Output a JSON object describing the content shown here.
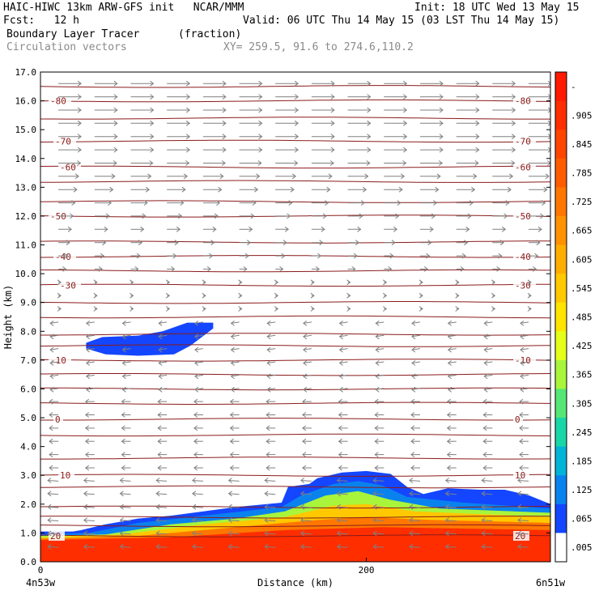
{
  "header": {
    "left_line1": "HAIC-HIWC 13km ARW-GFS init   NCAR/MMM",
    "init": "Init: 18 UTC Wed 13 May 15",
    "fcst": "Fcst:   12 h",
    "valid": "Valid: 06 UTC Thu 14 May 15 (03 LST Thu 14 May 15)",
    "field": "Boundary Layer Tracer",
    "field_units": "(fraction)",
    "vectors": "Circulation vectors",
    "xy": "XY= 259.5, 91.6 to 274.6,110.2"
  },
  "colors": {
    "contour": "#8b1a1a",
    "vector": "#808080",
    "tracer_high": "#ff1a00"
  },
  "chart_data": {
    "type": "heatmap",
    "xlabel": "Distance (km)",
    "ylabel": "Height (km)",
    "xlim": [
      0,
      313
    ],
    "ylim": [
      0,
      17
    ],
    "x_ticks": [
      0,
      200
    ],
    "x_tick_labels": [
      "0",
      "200"
    ],
    "x_end_labels": [
      "4n53w",
      "6n51w"
    ],
    "y_ticks": [
      0,
      1,
      2,
      3,
      4,
      5,
      6,
      7,
      8,
      9,
      10,
      11,
      12,
      13,
      14,
      15,
      16,
      17
    ],
    "y_tick_labels": [
      "0.0",
      "1.0",
      "2.0",
      "3.0",
      "4.0",
      "5.0",
      "6.0",
      "7.0",
      "8.0",
      "9.0",
      "10.0",
      "11.0",
      "12.0",
      "13.0",
      "14.0",
      "15.0",
      "16.0",
      "17.0"
    ],
    "colorbar": {
      "labels": [
        "-",
        ".905",
        ".845",
        ".785",
        ".725",
        ".665",
        ".605",
        ".545",
        ".485",
        ".425",
        ".365",
        ".305",
        ".245",
        ".185",
        ".125",
        ".065",
        ".005"
      ],
      "colors": [
        "#ff1a00",
        "#ff2e00",
        "#ff4500",
        "#ff5c00",
        "#ff7700",
        "#ff9200",
        "#ffae00",
        "#ffc800",
        "#ffe400",
        "#e4ff1a",
        "#a8f53c",
        "#55e676",
        "#19d6a6",
        "#00b4d8",
        "#0a82ee",
        "#1446ff",
        "#ffffff"
      ]
    },
    "tracer_regions": [
      {
        "value": 0.05,
        "top": [
          [
            0,
            1.05
          ],
          [
            20,
            1.05
          ],
          [
            25,
            1.1
          ],
          [
            40,
            1.3
          ],
          [
            60,
            1.5
          ],
          [
            80,
            1.6
          ],
          [
            100,
            1.75
          ],
          [
            120,
            1.9
          ],
          [
            148,
            2.05
          ],
          [
            152,
            2.6
          ],
          [
            165,
            2.7
          ],
          [
            170,
            2.9
          ],
          [
            185,
            3.1
          ],
          [
            200,
            3.15
          ],
          [
            215,
            3.05
          ],
          [
            225,
            2.6
          ],
          [
            235,
            2.35
          ],
          [
            250,
            2.55
          ],
          [
            270,
            2.5
          ],
          [
            285,
            2.5
          ],
          [
            300,
            2.3
          ],
          [
            313,
            2.0
          ]
        ]
      },
      {
        "value": 0.15,
        "top": [
          [
            0,
            0.95
          ],
          [
            30,
            1.0
          ],
          [
            60,
            1.35
          ],
          [
            100,
            1.6
          ],
          [
            148,
            1.9
          ],
          [
            160,
            2.3
          ],
          [
            180,
            2.7
          ],
          [
            195,
            2.8
          ],
          [
            210,
            2.65
          ],
          [
            225,
            2.25
          ],
          [
            260,
            2.05
          ],
          [
            313,
            1.85
          ]
        ]
      },
      {
        "value": 0.35,
        "top": [
          [
            0,
            0.9
          ],
          [
            40,
            0.95
          ],
          [
            80,
            1.3
          ],
          [
            120,
            1.5
          ],
          [
            150,
            1.75
          ],
          [
            175,
            2.3
          ],
          [
            195,
            2.45
          ],
          [
            215,
            2.15
          ],
          [
            245,
            1.85
          ],
          [
            313,
            1.7
          ]
        ]
      },
      {
        "value": 0.55,
        "top": [
          [
            0,
            0.85
          ],
          [
            50,
            0.95
          ],
          [
            100,
            1.3
          ],
          [
            150,
            1.55
          ],
          [
            180,
            1.95
          ],
          [
            200,
            2.0
          ],
          [
            230,
            1.75
          ],
          [
            313,
            1.55
          ]
        ]
      },
      {
        "value": 0.75,
        "top": [
          [
            0,
            0.8
          ],
          [
            60,
            0.9
          ],
          [
            120,
            1.2
          ],
          [
            170,
            1.45
          ],
          [
            200,
            1.55
          ],
          [
            240,
            1.45
          ],
          [
            313,
            1.35
          ]
        ]
      },
      {
        "value": 0.92,
        "top": [
          [
            0,
            0.75
          ],
          [
            80,
            0.85
          ],
          [
            150,
            1.1
          ],
          [
            210,
            1.2
          ],
          [
            313,
            1.1
          ]
        ]
      }
    ],
    "tracer_patch": {
      "value": 0.05,
      "outline": [
        [
          28,
          7.6
        ],
        [
          38,
          7.8
        ],
        [
          60,
          7.85
        ],
        [
          75,
          8.0
        ],
        [
          90,
          8.3
        ],
        [
          106,
          8.3
        ],
        [
          106,
          8.1
        ],
        [
          92,
          7.5
        ],
        [
          82,
          7.2
        ],
        [
          60,
          7.15
        ],
        [
          40,
          7.2
        ],
        [
          28,
          7.4
        ]
      ]
    },
    "temperature_contours": [
      {
        "label": "-80",
        "y": 16.0
      },
      {
        "label": "-70",
        "y": 14.6
      },
      {
        "label": "-60",
        "y": 13.7
      },
      {
        "label": "-50",
        "y": 12.0
      },
      {
        "label": "-40",
        "y": 10.6
      },
      {
        "label": "-30",
        "y": 9.6
      },
      {
        "label": "-10",
        "y": 7.0
      },
      {
        "label": "0",
        "y": 4.95
      },
      {
        "label": "10",
        "y": 3.0
      },
      {
        "label": "20",
        "y": 0.9
      }
    ],
    "unlabeled_contours": [
      16.5,
      15.4,
      13.2,
      12.5,
      11.1,
      10.1,
      9.0,
      8.5,
      7.9,
      7.5,
      6.5,
      6.0,
      5.5,
      4.4,
      3.6,
      2.6,
      1.9,
      1.55,
      1.25
    ]
  }
}
